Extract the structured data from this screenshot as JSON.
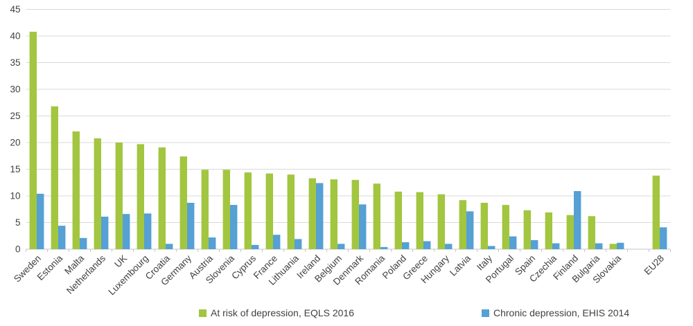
{
  "chart_data": {
    "type": "bar",
    "title": "",
    "xlabel": "",
    "ylabel": "",
    "ylim": [
      0,
      45
    ],
    "ytick_step": 5,
    "grid": true,
    "legend_position": "bottom",
    "gap_before_last_category": true,
    "categories": [
      "Sweden",
      "Estonia",
      "Malta",
      "Netherlands",
      "UK",
      "Luxembourg",
      "Croatia",
      "Germany",
      "Austria",
      "Slovenia",
      "Cyprus",
      "France",
      "Lithuania",
      "Ireland",
      "Belgium",
      "Denmark",
      "Romania",
      "Poland",
      "Greece",
      "Hungary",
      "Latvia",
      "Italy",
      "Portugal",
      "Spain",
      "Czechia",
      "Finland",
      "Bulgaria",
      "Slovakia",
      "EU28"
    ],
    "series": [
      {
        "name": "At risk of depression, EQLS 2016",
        "color": "#A2C63F",
        "values": [
          40.8,
          26.8,
          22.1,
          20.8,
          20.0,
          19.7,
          19.1,
          17.4,
          14.9,
          14.9,
          14.4,
          14.2,
          14.0,
          13.3,
          13.1,
          13.0,
          12.3,
          10.8,
          10.7,
          10.3,
          9.2,
          8.7,
          8.3,
          7.3,
          6.9,
          6.4,
          6.2,
          1.0,
          13.8
        ]
      },
      {
        "name": "Chronic depression, EHIS 2014",
        "color": "#55A0D4",
        "values": [
          10.4,
          4.4,
          2.1,
          6.1,
          6.6,
          6.7,
          1.0,
          8.7,
          2.2,
          8.3,
          0.8,
          2.7,
          1.9,
          12.4,
          1.0,
          8.4,
          0.4,
          1.3,
          1.5,
          1.0,
          7.1,
          0.6,
          2.4,
          1.7,
          1.1,
          10.9,
          1.1,
          1.2,
          4.1
        ]
      }
    ]
  },
  "colors": {
    "gridline": "#D9D9D9",
    "axis_line": "#C6C6C6",
    "axis_text": "#404040",
    "background": "#FFFFFF"
  }
}
